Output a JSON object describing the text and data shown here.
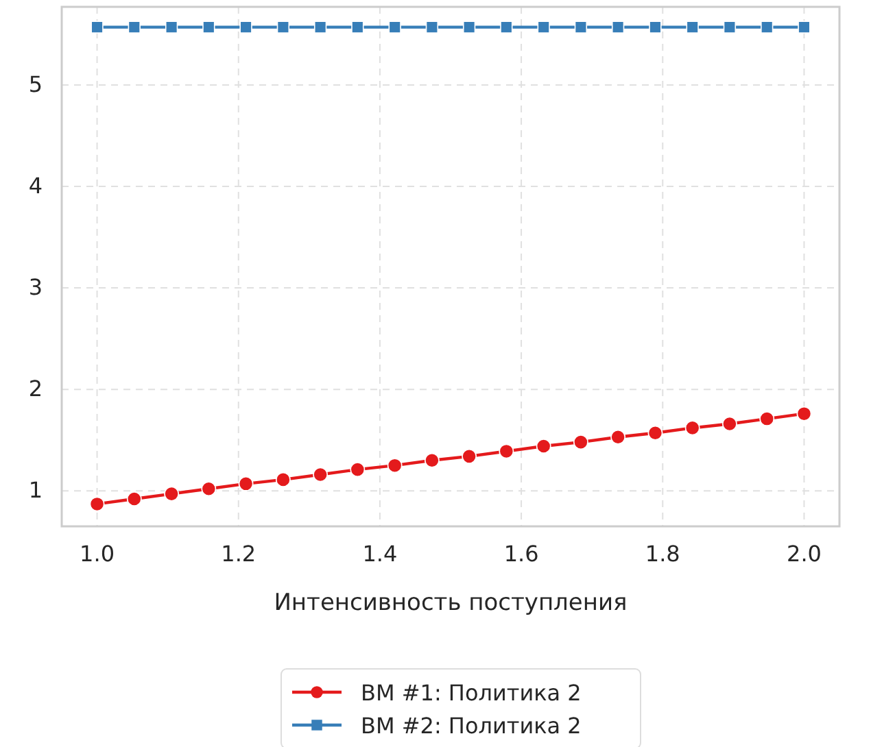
{
  "chart_data": {
    "type": "line",
    "xlabel": "Интенсивность поступления",
    "x": [
      1.0,
      1.0526,
      1.1053,
      1.1579,
      1.2105,
      1.2632,
      1.3158,
      1.3684,
      1.4211,
      1.4737,
      1.5263,
      1.5789,
      1.6316,
      1.6842,
      1.7368,
      1.7895,
      1.8421,
      1.8947,
      1.9474,
      2.0
    ],
    "series": [
      {
        "name": "ВМ #1: Политика 2",
        "color": "#e41a1c",
        "marker": "circle",
        "values": [
          0.87,
          0.92,
          0.97,
          1.02,
          1.07,
          1.11,
          1.16,
          1.21,
          1.25,
          1.3,
          1.34,
          1.39,
          1.44,
          1.48,
          1.53,
          1.57,
          1.62,
          1.66,
          1.71,
          1.76
        ]
      },
      {
        "name": "ВМ #2: Политика 2",
        "color": "#377eb8",
        "marker": "square",
        "values": [
          5.57,
          5.57,
          5.57,
          5.57,
          5.57,
          5.57,
          5.57,
          5.57,
          5.57,
          5.57,
          5.57,
          5.57,
          5.57,
          5.57,
          5.57,
          5.57,
          5.57,
          5.57,
          5.57,
          5.57
        ]
      }
    ],
    "xlim": [
      0.95,
      2.05
    ],
    "xticks": [
      {
        "value": 1,
        "label": "1.0"
      },
      {
        "value": 1.2,
        "label": "1.2"
      },
      {
        "value": 1.4,
        "label": "1.4"
      },
      {
        "value": 1.6,
        "label": "1.6"
      },
      {
        "value": 1.8,
        "label": "1.8"
      },
      {
        "value": 2,
        "label": "2.0"
      }
    ],
    "ylim": [
      0.65,
      5.77
    ],
    "yticks": [
      1,
      2,
      3,
      4,
      5
    ],
    "grid": true,
    "legend": "bottom",
    "line_style": "solid"
  }
}
